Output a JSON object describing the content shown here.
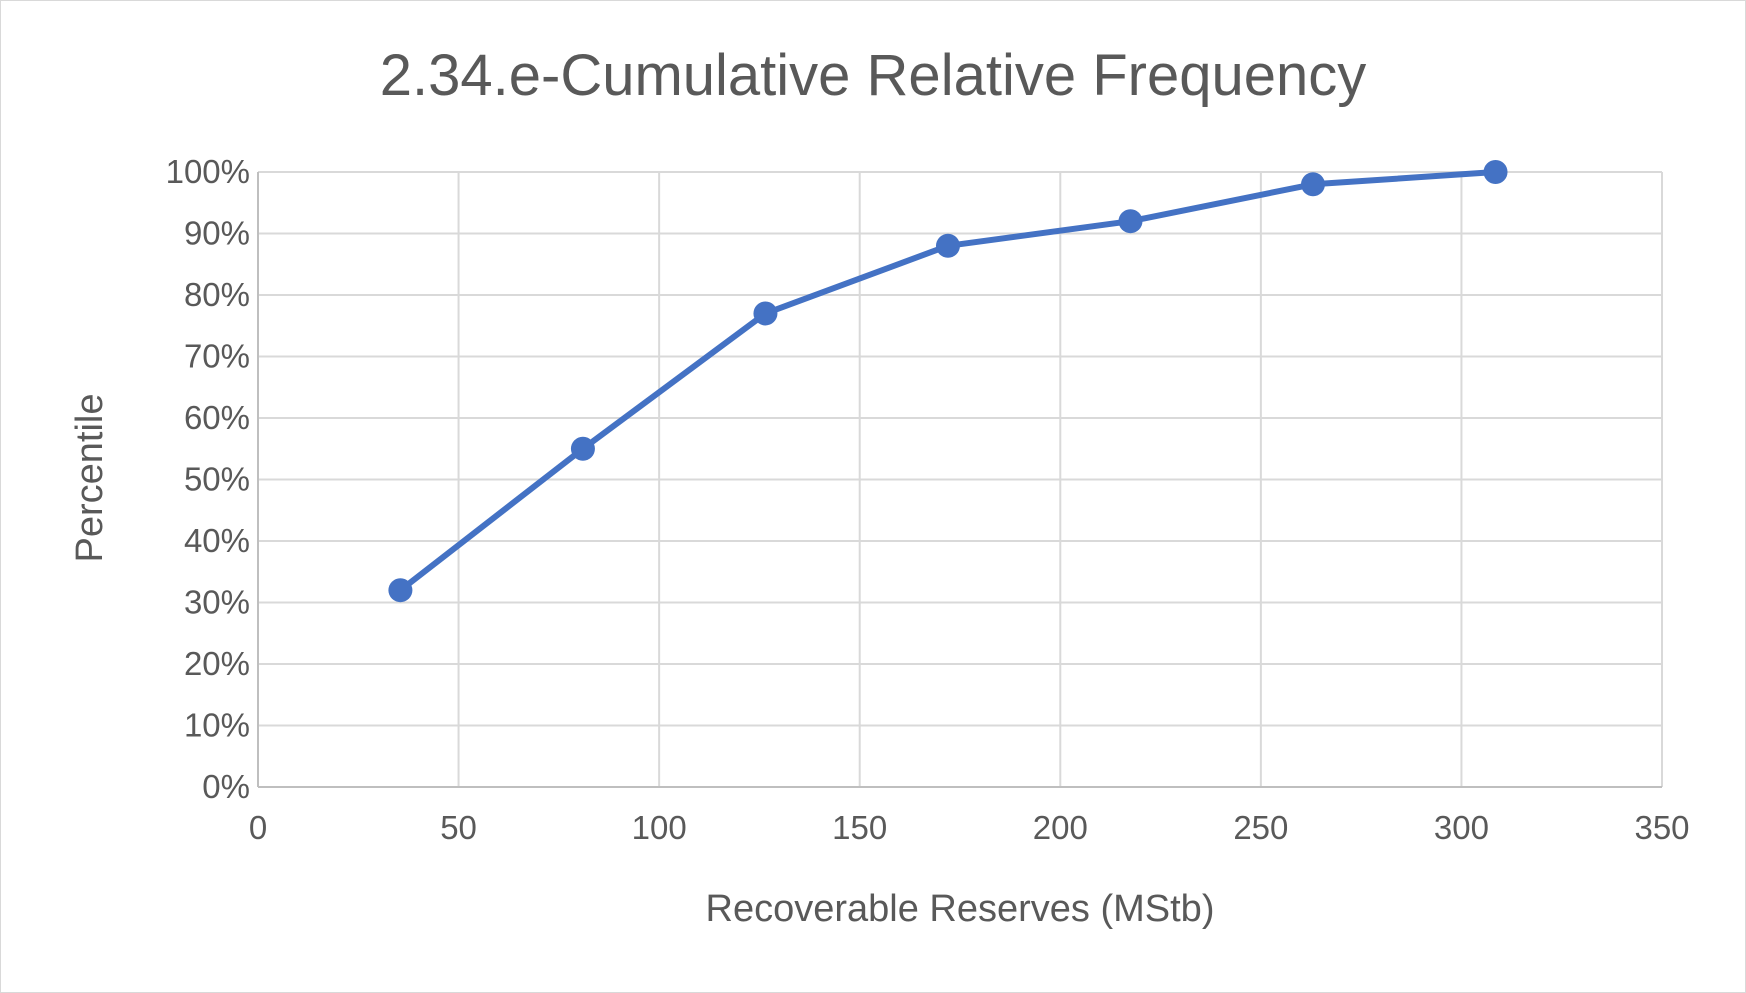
{
  "chart_data": {
    "type": "scatter",
    "title": "2.34.e-Cumulative Relative Frequency",
    "xlabel": "Recoverable Reserves (MStb)",
    "ylabel": "Percentile",
    "xlim": [
      0,
      350
    ],
    "ylim": [
      0,
      100
    ],
    "x_ticks": [
      0,
      50,
      100,
      150,
      200,
      250,
      300,
      350
    ],
    "x_tick_labels": [
      "0",
      "50",
      "100",
      "150",
      "200",
      "250",
      "300",
      "350"
    ],
    "y_ticks": [
      0,
      10,
      20,
      30,
      40,
      50,
      60,
      70,
      80,
      90,
      100
    ],
    "y_tick_labels": [
      "0%",
      "10%",
      "20%",
      "30%",
      "40%",
      "50%",
      "60%",
      "70%",
      "80%",
      "90%",
      "100%"
    ],
    "grid": true,
    "line_connected": true,
    "markers": true,
    "series": [
      {
        "color": "#4472C4",
        "x": [
          35.5,
          81,
          126.5,
          172,
          217.5,
          263,
          308.5
        ],
        "y": [
          32,
          55,
          77,
          88,
          92,
          98,
          100
        ]
      }
    ]
  }
}
